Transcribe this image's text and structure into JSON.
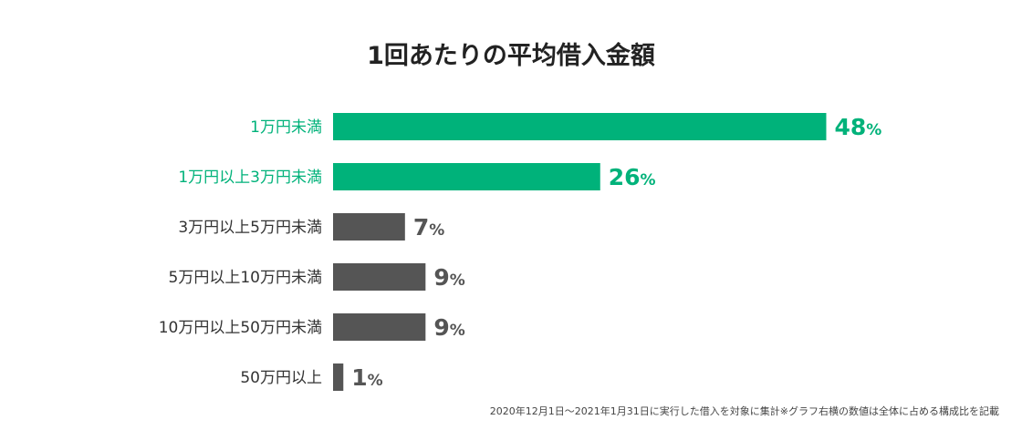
{
  "chart_data": {
    "type": "bar",
    "orientation": "horizontal",
    "title": "1回あたりの平均借入金額",
    "categories": [
      "1万円未満",
      "1万円以上3万円未満",
      "3万円以上5万円未満",
      "5万円以上10万円未満",
      "10万円以上50万円未満",
      "50万円以上"
    ],
    "values": [
      48,
      26,
      7,
      9,
      9,
      1
    ],
    "value_unit": "%",
    "xlim": [
      0,
      50
    ],
    "grid": false,
    "colors": {
      "highlight": "#00b27a",
      "default": "#555555"
    },
    "highlighted": [
      0,
      1
    ],
    "footnote": "2020年12月1日〜2021年1月31日に実行した借入を対象に集計※グラフ右横の数値は全体に占める構成比を記載"
  }
}
